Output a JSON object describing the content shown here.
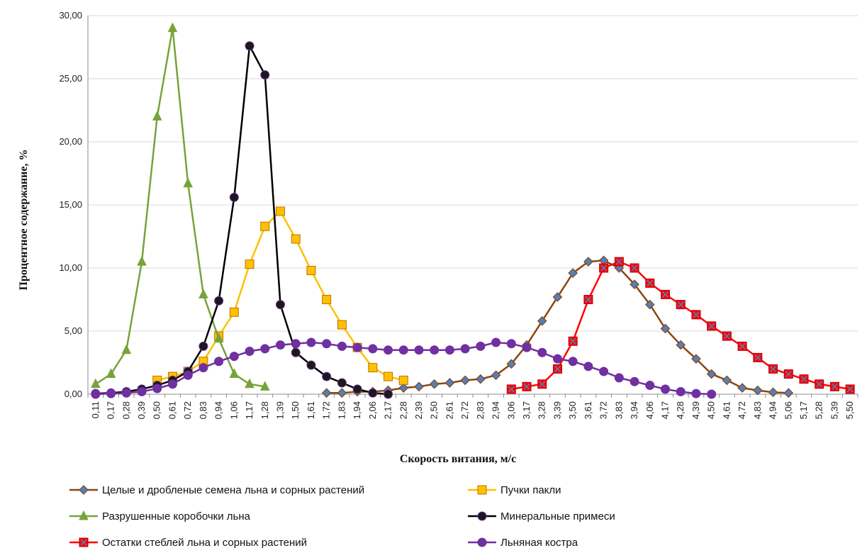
{
  "chart_data": {
    "type": "line",
    "xlabel": "Скорость витания, м/с",
    "ylabel": "Процентное содержание, %",
    "ylim": [
      0,
      30
    ],
    "ytick_step": 5,
    "grid": "horizontal",
    "legend_position": "bottom",
    "x": [
      "0,11",
      "0,17",
      "0,28",
      "0,39",
      "0,50",
      "0,61",
      "0,72",
      "0,83",
      "0,94",
      "1,06",
      "1,17",
      "1,28",
      "1,39",
      "1,50",
      "1,61",
      "1,72",
      "1,83",
      "1,94",
      "2,06",
      "2,17",
      "2,28",
      "2,39",
      "2,50",
      "2,61",
      "2,72",
      "2,83",
      "2,94",
      "3,06",
      "3,17",
      "3,28",
      "3,39",
      "3,50",
      "3,61",
      "3,72",
      "3,83",
      "3,94",
      "4,06",
      "4,17",
      "4,28",
      "4,39",
      "4,50",
      "4,61",
      "4,72",
      "4,83",
      "4,94",
      "5,06",
      "5,17",
      "5,28",
      "5,39",
      "5,50"
    ],
    "y_tick_labels": [
      "0,00",
      "5,00",
      "10,00",
      "15,00",
      "20,00",
      "25,00",
      "30,00"
    ],
    "series": [
      {
        "name": "Целые и дробленые семена льна и сорных растений",
        "color": "#8B4513",
        "marker_fill": "#4F81BD",
        "marker": "diamond",
        "values": [
          null,
          null,
          null,
          null,
          null,
          null,
          null,
          null,
          null,
          null,
          null,
          null,
          null,
          null,
          null,
          0.1,
          0.1,
          0.2,
          0.2,
          0.3,
          0.5,
          0.6,
          0.8,
          0.9,
          1.1,
          1.2,
          1.5,
          2.4,
          3.9,
          5.8,
          7.7,
          9.6,
          10.5,
          10.6,
          10.0,
          8.7,
          7.1,
          5.2,
          3.9,
          2.8,
          1.6,
          1.1,
          0.5,
          0.3,
          0.15,
          0.1,
          null,
          null,
          null,
          null
        ]
      },
      {
        "name": "Пучки пакли",
        "color": "#FFC000",
        "marker_fill": "#FFC000",
        "marker": "square",
        "values": [
          null,
          null,
          null,
          null,
          1.1,
          1.4,
          1.8,
          2.6,
          4.6,
          6.5,
          10.3,
          13.3,
          14.5,
          12.3,
          9.8,
          7.5,
          5.5,
          3.7,
          2.1,
          1.4,
          1.1,
          null,
          null,
          null,
          null,
          null,
          null,
          null,
          null,
          null,
          null,
          null,
          null,
          null,
          null,
          null,
          null,
          null,
          null,
          null,
          null,
          null,
          null,
          null,
          null,
          null,
          null,
          null,
          null,
          null
        ]
      },
      {
        "name": "Разрушенные коробочки льна",
        "color": "#77A339",
        "marker_fill": "#77A339",
        "marker": "triangle",
        "values": [
          0.8,
          1.6,
          3.5,
          10.5,
          22.0,
          29.0,
          16.7,
          7.9,
          4.4,
          1.6,
          0.8,
          0.6,
          null,
          null,
          null,
          null,
          null,
          null,
          null,
          null,
          null,
          null,
          null,
          null,
          null,
          null,
          null,
          null,
          null,
          null,
          null,
          null,
          null,
          null,
          null,
          null,
          null,
          null,
          null,
          null,
          null,
          null,
          null,
          null,
          null,
          null,
          null,
          null,
          null,
          null
        ]
      },
      {
        "name": "Минеральные примеси",
        "color": "#000000",
        "marker_fill": "#1a1a1a",
        "marker": "circle",
        "values": [
          0.05,
          0.1,
          0.2,
          0.4,
          0.7,
          1.1,
          1.8,
          3.8,
          7.4,
          15.6,
          27.6,
          25.3,
          7.1,
          3.3,
          2.3,
          1.4,
          0.9,
          0.4,
          0.1,
          0.0,
          null,
          null,
          null,
          null,
          null,
          null,
          null,
          null,
          null,
          null,
          null,
          null,
          null,
          null,
          null,
          null,
          null,
          null,
          null,
          null,
          null,
          null,
          null,
          null,
          null,
          null,
          null,
          null,
          null,
          null
        ]
      },
      {
        "name": "Остатки стеблей льна и сорных растений",
        "color": "#FF0000",
        "marker_fill": "#FF0000",
        "marker": "square-x",
        "values": [
          null,
          null,
          null,
          null,
          null,
          null,
          null,
          null,
          null,
          null,
          null,
          null,
          null,
          null,
          null,
          null,
          null,
          null,
          null,
          null,
          null,
          null,
          null,
          null,
          null,
          null,
          null,
          0.4,
          0.6,
          0.8,
          2.0,
          4.2,
          7.5,
          10.0,
          10.5,
          10.0,
          8.8,
          7.9,
          7.1,
          6.3,
          5.4,
          4.6,
          3.8,
          2.9,
          2.0,
          1.6,
          1.2,
          0.8,
          0.6,
          0.4
        ]
      },
      {
        "name": "Льняная костра",
        "color": "#7030A0",
        "marker_fill": "#7030A0",
        "marker": "circle",
        "values": [
          0.0,
          0.05,
          0.1,
          0.2,
          0.45,
          0.8,
          1.5,
          2.1,
          2.6,
          3.0,
          3.4,
          3.6,
          3.9,
          4.0,
          4.1,
          4.0,
          3.8,
          3.7,
          3.6,
          3.5,
          3.5,
          3.5,
          3.5,
          3.5,
          3.6,
          3.8,
          4.1,
          4.0,
          3.7,
          3.3,
          2.8,
          2.6,
          2.2,
          1.8,
          1.3,
          1.0,
          0.7,
          0.4,
          0.2,
          0.05,
          0.0,
          null,
          null,
          null,
          null,
          null,
          null,
          null,
          null,
          null
        ]
      }
    ]
  }
}
